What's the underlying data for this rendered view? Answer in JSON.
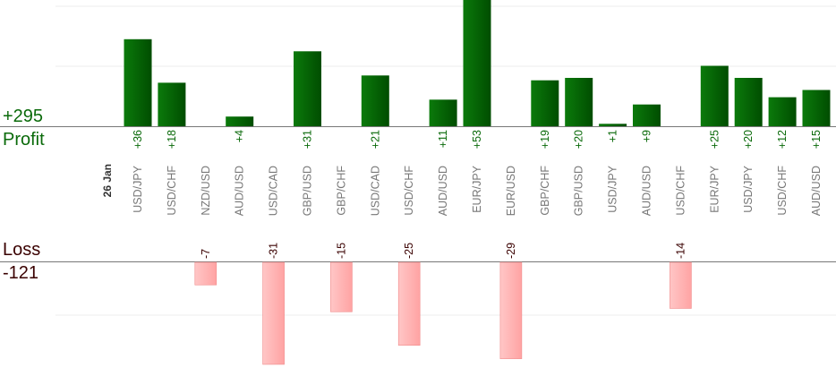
{
  "chart_data": {
    "type": "bar",
    "date_label": "26 Jan",
    "categories": [
      "USD/JPY",
      "USD/CHF",
      "NZD/USD",
      "AUD/USD",
      "USD/CAD",
      "GBP/USD",
      "GBP/CHF",
      "USD/CAD",
      "USD/CHF",
      "AUD/USD",
      "EUR/JPY",
      "EUR/USD",
      "GBP/CHF",
      "GBP/USD",
      "USD/JPY",
      "AUD/USD",
      "USD/CHF",
      "EUR/JPY",
      "USD/JPY",
      "USD/CHF",
      "AUD/USD"
    ],
    "series": [
      {
        "values": [
          36,
          18,
          null,
          4,
          null,
          31,
          null,
          21,
          null,
          11,
          53,
          null,
          19,
          20,
          1,
          9,
          null,
          25,
          20,
          12,
          15
        ]
      },
      {
        "values": [
          null,
          null,
          -7,
          null,
          -31,
          null,
          -15,
          null,
          -25,
          null,
          null,
          -29,
          null,
          null,
          null,
          null,
          -14,
          null,
          null,
          null,
          null
        ]
      }
    ],
    "profit_labels": [
      "+36",
      "+18",
      "",
      "+4",
      "",
      "+31",
      "",
      "+21",
      "",
      "+11",
      "+53",
      "",
      "+19",
      "+20",
      "+1",
      "+9",
      "",
      "+25",
      "+20",
      "+12",
      "+15"
    ],
    "loss_labels": [
      "",
      "",
      "-7",
      "",
      "-31",
      "",
      "-15",
      "",
      "-25",
      "",
      "",
      "-29",
      "",
      "",
      "",
      "",
      "-14",
      "",
      "",
      "",
      ""
    ],
    "grid": true,
    "colors": {
      "profit_bar": "#0a6a0a",
      "loss_bar": "#ffb3b3",
      "profit_text": "#0a6a0a",
      "loss_text": "#3a0000",
      "axis": "#777777",
      "category_text": "#777777"
    }
  },
  "summary": {
    "profit_total": "+295",
    "profit_label": "Profit",
    "loss_label": "Loss",
    "loss_total": "-121"
  }
}
